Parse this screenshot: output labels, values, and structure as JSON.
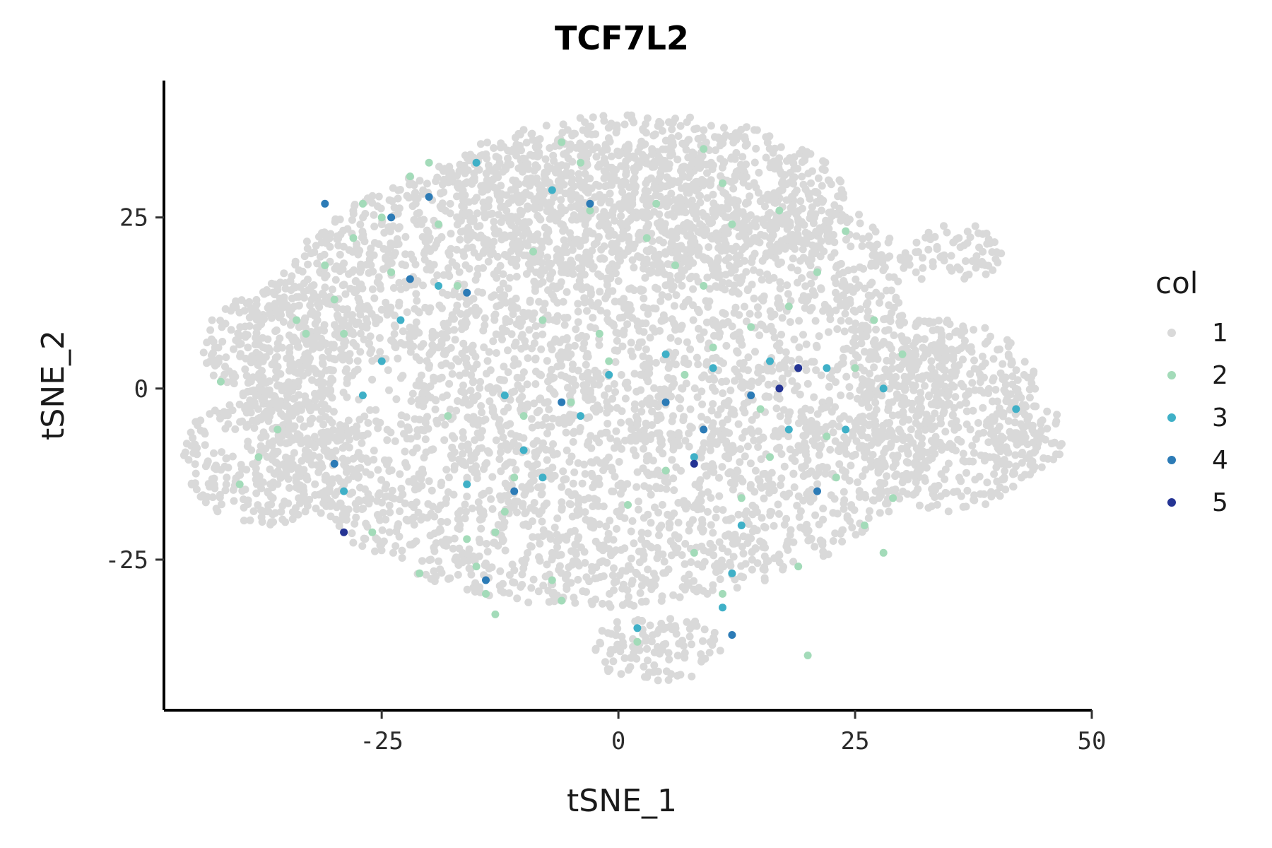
{
  "chart_data": {
    "type": "scatter",
    "title": "TCF7L2",
    "xlabel": "tSNE_1",
    "ylabel": "tSNE_2",
    "xlim": [
      -48,
      50
    ],
    "ylim": [
      -47,
      45
    ],
    "x_ticks": [
      -25,
      0,
      25,
      50
    ],
    "y_ticks": [
      -25,
      0,
      25
    ],
    "x_tick_labels": [
      "-25",
      "0",
      "25",
      "50"
    ],
    "y_tick_labels": [
      "-25",
      "0",
      "25"
    ],
    "grid": false,
    "legend": {
      "title": "col",
      "position": "right",
      "entries": [
        "1",
        "2",
        "3",
        "4",
        "5"
      ]
    },
    "colors": {
      "1": "#d9d9d9",
      "2": "#a3dbb9",
      "3": "#3fb0c7",
      "4": "#2c7bb6",
      "5": "#253494"
    },
    "series": [
      {
        "name": "1",
        "regions": [
          {
            "cx": -2,
            "cy": 2,
            "rx": 38,
            "ry": 34
          },
          {
            "cx": 2,
            "cy": 28,
            "rx": 22,
            "ry": 12
          },
          {
            "cx": -34,
            "cy": 6,
            "rx": 10,
            "ry": 9
          },
          {
            "cx": -37,
            "cy": -10,
            "rx": 9,
            "ry": 10
          },
          {
            "cx": 35,
            "cy": -4,
            "rx": 10,
            "ry": 14
          },
          {
            "cx": 43,
            "cy": -7,
            "rx": 4,
            "ry": 6
          },
          {
            "cx": 36,
            "cy": 20,
            "rx": 5,
            "ry": 4
          },
          {
            "cx": 4,
            "cy": -38,
            "rx": 7,
            "ry": 5
          }
        ],
        "approx_count": 6200
      },
      {
        "name": "2",
        "points": [
          [
            -42,
            1
          ],
          [
            -40,
            -14
          ],
          [
            -38,
            -10
          ],
          [
            -36,
            -6
          ],
          [
            -34,
            10
          ],
          [
            -33,
            8
          ],
          [
            -31,
            18
          ],
          [
            -30,
            13
          ],
          [
            -29,
            8
          ],
          [
            -28,
            22
          ],
          [
            -27,
            27
          ],
          [
            -25,
            25
          ],
          [
            -24,
            17
          ],
          [
            -22,
            31
          ],
          [
            -20,
            33
          ],
          [
            -19,
            24
          ],
          [
            -17,
            15
          ],
          [
            -16,
            -22
          ],
          [
            -15,
            -26
          ],
          [
            -14,
            -30
          ],
          [
            -13,
            -21
          ],
          [
            -12,
            -18
          ],
          [
            -11,
            -13
          ],
          [
            -10,
            -4
          ],
          [
            -9,
            20
          ],
          [
            -8,
            10
          ],
          [
            -7,
            -28
          ],
          [
            -6,
            -31
          ],
          [
            -5,
            -2
          ],
          [
            -4,
            33
          ],
          [
            -3,
            26
          ],
          [
            -2,
            8
          ],
          [
            -1,
            4
          ],
          [
            1,
            -17
          ],
          [
            2,
            -37
          ],
          [
            3,
            22
          ],
          [
            4,
            27
          ],
          [
            5,
            -12
          ],
          [
            6,
            18
          ],
          [
            7,
            2
          ],
          [
            8,
            -24
          ],
          [
            9,
            15
          ],
          [
            10,
            6
          ],
          [
            11,
            -30
          ],
          [
            12,
            24
          ],
          [
            13,
            -16
          ],
          [
            14,
            9
          ],
          [
            15,
            -3
          ],
          [
            16,
            -10
          ],
          [
            17,
            26
          ],
          [
            18,
            12
          ],
          [
            19,
            -26
          ],
          [
            20,
            -39
          ],
          [
            21,
            17
          ],
          [
            22,
            -7
          ],
          [
            23,
            -13
          ],
          [
            24,
            23
          ],
          [
            25,
            3
          ],
          [
            26,
            -20
          ],
          [
            27,
            10
          ],
          [
            28,
            -24
          ],
          [
            29,
            -16
          ],
          [
            30,
            5
          ],
          [
            -26,
            -21
          ],
          [
            -21,
            -27
          ],
          [
            -18,
            -4
          ],
          [
            -6,
            36
          ],
          [
            9,
            35
          ],
          [
            -13,
            -33
          ],
          [
            11,
            30
          ]
        ]
      },
      {
        "name": "3",
        "points": [
          [
            -27,
            -1
          ],
          [
            -25,
            4
          ],
          [
            -23,
            10
          ],
          [
            -19,
            15
          ],
          [
            -16,
            -14
          ],
          [
            -12,
            -1
          ],
          [
            -10,
            -9
          ],
          [
            -8,
            -13
          ],
          [
            -7,
            29
          ],
          [
            -4,
            -4
          ],
          [
            -1,
            2
          ],
          [
            2,
            -35
          ],
          [
            5,
            5
          ],
          [
            8,
            -10
          ],
          [
            10,
            3
          ],
          [
            11,
            -32
          ],
          [
            12,
            -27
          ],
          [
            16,
            4
          ],
          [
            18,
            -6
          ],
          [
            22,
            3
          ],
          [
            24,
            -6
          ],
          [
            28,
            0
          ],
          [
            -15,
            33
          ],
          [
            -29,
            -15
          ],
          [
            42,
            -3
          ],
          [
            13,
            -20
          ]
        ]
      },
      {
        "name": "4",
        "points": [
          [
            -31,
            27
          ],
          [
            -24,
            25
          ],
          [
            -20,
            28
          ],
          [
            -16,
            14
          ],
          [
            -14,
            -28
          ],
          [
            -11,
            -15
          ],
          [
            -6,
            -2
          ],
          [
            -3,
            27
          ],
          [
            5,
            -2
          ],
          [
            9,
            -6
          ],
          [
            12,
            -36
          ],
          [
            19,
            3
          ],
          [
            21,
            -15
          ],
          [
            -30,
            -11
          ],
          [
            -22,
            16
          ],
          [
            14,
            -1
          ]
        ]
      },
      {
        "name": "5",
        "points": [
          [
            -29,
            -21
          ],
          [
            8,
            -11
          ],
          [
            17,
            0
          ],
          [
            19,
            3
          ]
        ]
      }
    ]
  }
}
